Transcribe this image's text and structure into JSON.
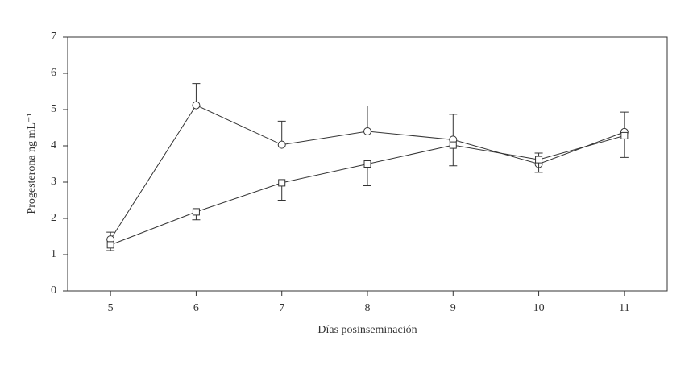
{
  "chart_data": {
    "type": "line",
    "x_label": "Días posinseminación",
    "y_label": "Progesterona ng mL⁻¹",
    "x": [
      5,
      6,
      7,
      8,
      9,
      10,
      11
    ],
    "xlim": [
      4.5,
      11.5
    ],
    "xticks": [
      5,
      6,
      7,
      8,
      9,
      10,
      11
    ],
    "ylim": [
      0,
      7
    ],
    "yticks": [
      0,
      1,
      2,
      3,
      4,
      5,
      6,
      7
    ],
    "series": [
      {
        "marker": "circle",
        "color": "#333333",
        "values": [
          1.42,
          5.12,
          4.03,
          4.4,
          4.17,
          3.5,
          4.38
        ],
        "errors": [
          0.2,
          0.6,
          0.65,
          0.7,
          0.7,
          0.3,
          0.55
        ],
        "error_direction": "up"
      },
      {
        "marker": "square",
        "color": "#333333",
        "values": [
          1.27,
          2.18,
          2.98,
          3.5,
          4.02,
          3.62,
          4.28
        ],
        "errors": [
          0.16,
          0.22,
          0.48,
          0.6,
          0.57,
          0.35,
          0.6
        ],
        "error_direction": "down"
      }
    ]
  }
}
